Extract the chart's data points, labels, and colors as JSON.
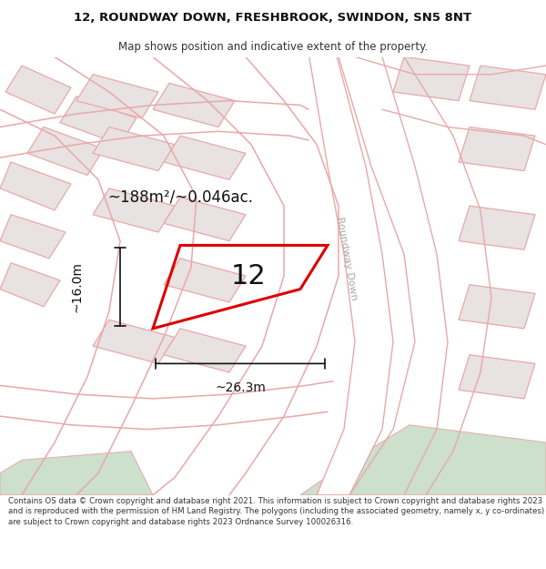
{
  "title_line1": "12, ROUNDWAY DOWN, FRESHBROOK, SWINDON, SN5 8NT",
  "title_line2": "Map shows position and indicative extent of the property.",
  "footer_text": "Contains OS data © Crown copyright and database right 2021. This information is subject to Crown copyright and database rights 2023 and is reproduced with the permission of HM Land Registry. The polygons (including the associated geometry, namely x, y co-ordinates) are subject to Crown copyright and database rights 2023 Ordnance Survey 100026316.",
  "area_label": "~188m²/~0.046ac.",
  "number_label": "12",
  "width_label": "~26.3m",
  "height_label": "~16.0m",
  "road_label": "Roundway Down",
  "map_bg": "#f7f3f3",
  "building_fill": "#e8e2e2",
  "building_stroke": "#e8a8a8",
  "road_fill": "#ffffff",
  "road_stroke": "#e8a8a8",
  "green_fill": "#cce0cc",
  "plot_stroke": "#dd0000",
  "dimension_color": "#111111",
  "label_color": "#111111",
  "road_text_color": "#aaaaaa",
  "title_fontsize": 9.5,
  "subtitle_fontsize": 8.5,
  "footer_fontsize": 6.2,
  "area_fontsize": 12,
  "number_fontsize": 22,
  "dim_fontsize": 10
}
